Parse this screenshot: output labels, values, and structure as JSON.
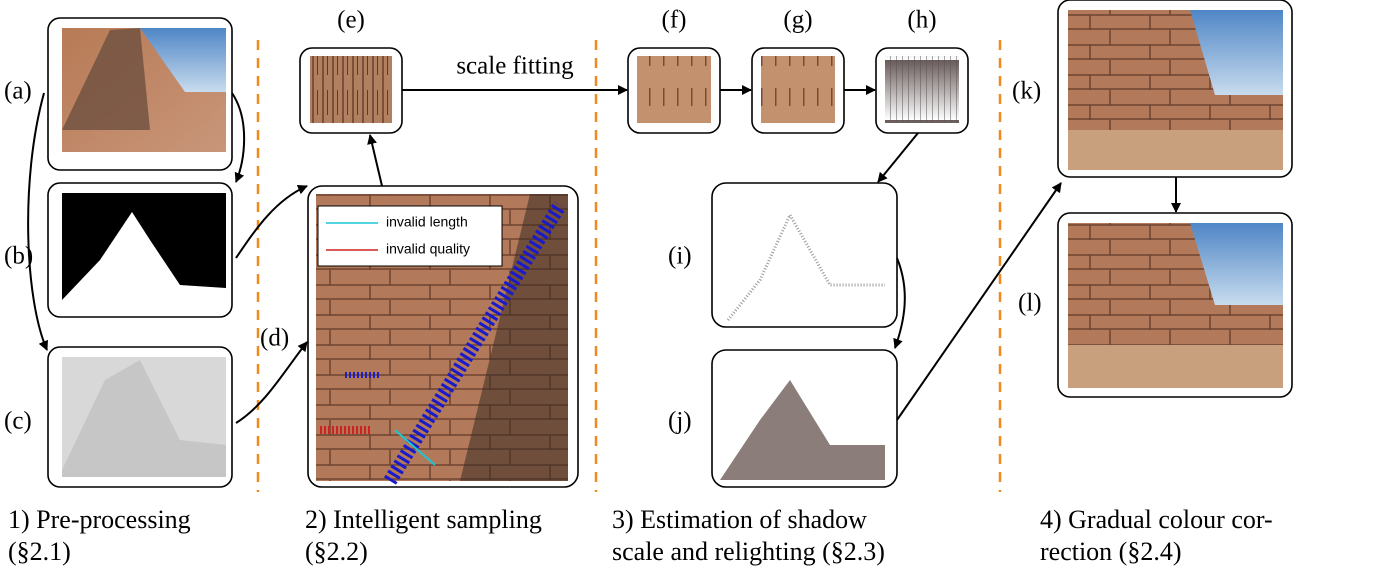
{
  "panels": [
    {
      "label": "(a)"
    },
    {
      "label": "(b)"
    },
    {
      "label": "(c)"
    },
    {
      "label": "(d)"
    },
    {
      "label": "(e)"
    },
    {
      "label": "(f)"
    },
    {
      "label": "(g)"
    },
    {
      "label": "(h)"
    },
    {
      "label": "(i)"
    },
    {
      "label": "(j)"
    },
    {
      "label": "(k)"
    },
    {
      "label": "(l)"
    }
  ],
  "edge_label": "scale fitting",
  "legend": [
    "invalid length",
    "invalid quality"
  ],
  "stages": [
    {
      "lines": [
        "1) Pre-processing",
        "(§2.1)"
      ]
    },
    {
      "lines": [
        "2) Intelligent sampling",
        "(§2.2)"
      ]
    },
    {
      "lines": [
        "3) Estimation of shadow",
        "scale and relighting (§2.3)"
      ]
    },
    {
      "lines": [
        "4) Gradual colour cor-",
        "rection (§2.4)"
      ]
    }
  ]
}
